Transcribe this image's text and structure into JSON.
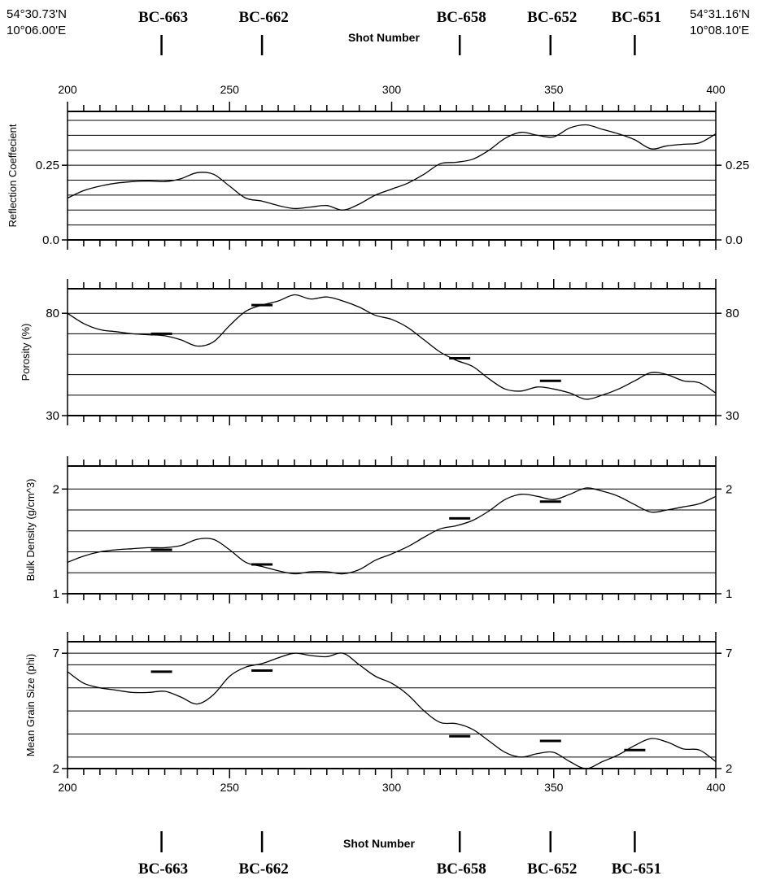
{
  "header": {
    "left_coord": [
      "54°30.73'N",
      "10°06.00'E"
    ],
    "right_coord": [
      "54°31.16'N",
      "10°08.10'E"
    ],
    "axis_title": "Shot Number"
  },
  "stations": [
    {
      "name": "BC-663",
      "shot": 229
    },
    {
      "name": "BC-662",
      "shot": 260
    },
    {
      "name": "BC-658",
      "shot": 321
    },
    {
      "name": "BC-652",
      "shot": 349
    },
    {
      "name": "BC-651",
      "shot": 375
    }
  ],
  "footer": {
    "axis_title": "Shot Number"
  },
  "chart_data": [
    {
      "type": "line",
      "ylabel": "Reflection Coeffecient",
      "xlim": [
        200,
        400
      ],
      "x_ticks": [
        200,
        250,
        300,
        350,
        400
      ],
      "x_tick_labels": [
        "200",
        "250",
        "300",
        "350",
        "400"
      ],
      "ylim": [
        0.0,
        0.43
      ],
      "y_ticks": [
        0.0,
        0.25
      ],
      "y_tick_labels": [
        "0.0",
        "0.25"
      ],
      "grid_lines": [
        0.05,
        0.1,
        0.15,
        0.2,
        0.25,
        0.3,
        0.35,
        0.4
      ],
      "x": [
        200,
        205,
        210,
        215,
        220,
        225,
        230,
        235,
        240,
        245,
        250,
        255,
        260,
        265,
        270,
        275,
        280,
        285,
        290,
        295,
        300,
        305,
        310,
        315,
        320,
        325,
        330,
        335,
        340,
        345,
        350,
        355,
        360,
        365,
        370,
        375,
        380,
        385,
        390,
        395,
        400
      ],
      "values": [
        0.14,
        0.165,
        0.18,
        0.19,
        0.195,
        0.197,
        0.195,
        0.205,
        0.225,
        0.22,
        0.18,
        0.14,
        0.13,
        0.115,
        0.105,
        0.11,
        0.115,
        0.1,
        0.12,
        0.15,
        0.17,
        0.19,
        0.22,
        0.255,
        0.26,
        0.27,
        0.3,
        0.34,
        0.36,
        0.35,
        0.345,
        0.375,
        0.385,
        0.37,
        0.355,
        0.335,
        0.305,
        0.315,
        0.32,
        0.325,
        0.355
      ],
      "core_marks": []
    },
    {
      "type": "line",
      "ylabel": "Porosity (%)",
      "xlim": [
        200,
        400
      ],
      "x_ticks": [
        200,
        250,
        300,
        350,
        400
      ],
      "x_tick_labels": [],
      "ylim": [
        30,
        92
      ],
      "y_ticks": [
        30,
        80
      ],
      "y_tick_labels": [
        "30",
        "80"
      ],
      "grid_lines": [
        40,
        50,
        60,
        70,
        80
      ],
      "x": [
        200,
        205,
        210,
        215,
        220,
        225,
        230,
        235,
        240,
        245,
        250,
        255,
        260,
        265,
        270,
        275,
        280,
        285,
        290,
        295,
        300,
        305,
        310,
        315,
        320,
        325,
        330,
        335,
        340,
        345,
        350,
        355,
        360,
        365,
        370,
        375,
        380,
        385,
        390,
        395,
        400
      ],
      "values": [
        80,
        75,
        72,
        71,
        70,
        69.5,
        69,
        67,
        64,
        66,
        74,
        81,
        84,
        86,
        89,
        87,
        88,
        86,
        83,
        79,
        77,
        73,
        67,
        61,
        57,
        54,
        48,
        43,
        42,
        44,
        43,
        41,
        38,
        40,
        43,
        47,
        51,
        50,
        47,
        46,
        41
      ],
      "core_marks": [
        {
          "x": 229,
          "y": 70
        },
        {
          "x": 260,
          "y": 84
        },
        {
          "x": 321,
          "y": 58
        },
        {
          "x": 349,
          "y": 47
        }
      ]
    },
    {
      "type": "line",
      "ylabel": "Bulk Density (g/cm^3)",
      "xlim": [
        200,
        400
      ],
      "x_ticks": [
        200,
        250,
        300,
        350,
        400
      ],
      "x_tick_labels": [],
      "ylim": [
        1.0,
        2.22
      ],
      "y_ticks": [
        1.0,
        2.0
      ],
      "y_tick_labels": [
        "1",
        "2"
      ],
      "grid_lines": [
        1.2,
        1.4,
        1.6,
        1.8,
        2.0
      ],
      "x": [
        200,
        205,
        210,
        215,
        220,
        225,
        230,
        235,
        240,
        245,
        250,
        255,
        260,
        265,
        270,
        275,
        280,
        285,
        290,
        295,
        300,
        305,
        310,
        315,
        320,
        325,
        330,
        335,
        340,
        345,
        350,
        355,
        360,
        365,
        370,
        375,
        380,
        385,
        390,
        395,
        400
      ],
      "values": [
        1.3,
        1.36,
        1.4,
        1.42,
        1.43,
        1.44,
        1.44,
        1.46,
        1.52,
        1.52,
        1.42,
        1.3,
        1.26,
        1.22,
        1.19,
        1.21,
        1.21,
        1.19,
        1.23,
        1.32,
        1.38,
        1.45,
        1.54,
        1.62,
        1.65,
        1.7,
        1.79,
        1.9,
        1.95,
        1.93,
        1.9,
        1.95,
        2.01,
        1.98,
        1.93,
        1.85,
        1.78,
        1.8,
        1.83,
        1.86,
        1.93
      ],
      "core_marks": [
        {
          "x": 229,
          "y": 1.42
        },
        {
          "x": 260,
          "y": 1.28
        },
        {
          "x": 321,
          "y": 1.72
        },
        {
          "x": 349,
          "y": 1.88
        }
      ]
    },
    {
      "type": "line",
      "ylabel": "Mean Grain Size (phi)",
      "xlim": [
        200,
        400
      ],
      "x_ticks": [
        200,
        250,
        300,
        350,
        400
      ],
      "x_tick_labels": [
        "200",
        "250",
        "300",
        "350",
        "400"
      ],
      "ylim": [
        2.0,
        7.5
      ],
      "y_ticks": [
        2.0,
        7.0
      ],
      "y_tick_labels": [
        "2",
        "7"
      ],
      "grid_lines": [
        2.5,
        3.5,
        4.5,
        5.5,
        6.5,
        7.0
      ],
      "x": [
        200,
        205,
        210,
        215,
        220,
        225,
        230,
        235,
        240,
        245,
        250,
        255,
        260,
        265,
        270,
        275,
        280,
        285,
        290,
        295,
        300,
        305,
        310,
        315,
        320,
        325,
        330,
        335,
        340,
        345,
        350,
        355,
        360,
        365,
        370,
        375,
        380,
        385,
        390,
        395,
        400
      ],
      "values": [
        6.2,
        5.7,
        5.5,
        5.4,
        5.3,
        5.3,
        5.35,
        5.1,
        4.8,
        5.2,
        6.0,
        6.4,
        6.55,
        6.8,
        7.0,
        6.9,
        6.85,
        7.0,
        6.5,
        6.0,
        5.7,
        5.2,
        4.5,
        4.0,
        3.95,
        3.7,
        3.2,
        2.7,
        2.5,
        2.65,
        2.7,
        2.3,
        2.0,
        2.3,
        2.6,
        3.0,
        3.3,
        3.15,
        2.85,
        2.8,
        2.3
      ],
      "core_marks": [
        {
          "x": 229,
          "y": 6.2
        },
        {
          "x": 260,
          "y": 6.25
        },
        {
          "x": 321,
          "y": 3.4
        },
        {
          "x": 349,
          "y": 3.2
        },
        {
          "x": 375,
          "y": 2.8
        }
      ]
    }
  ]
}
